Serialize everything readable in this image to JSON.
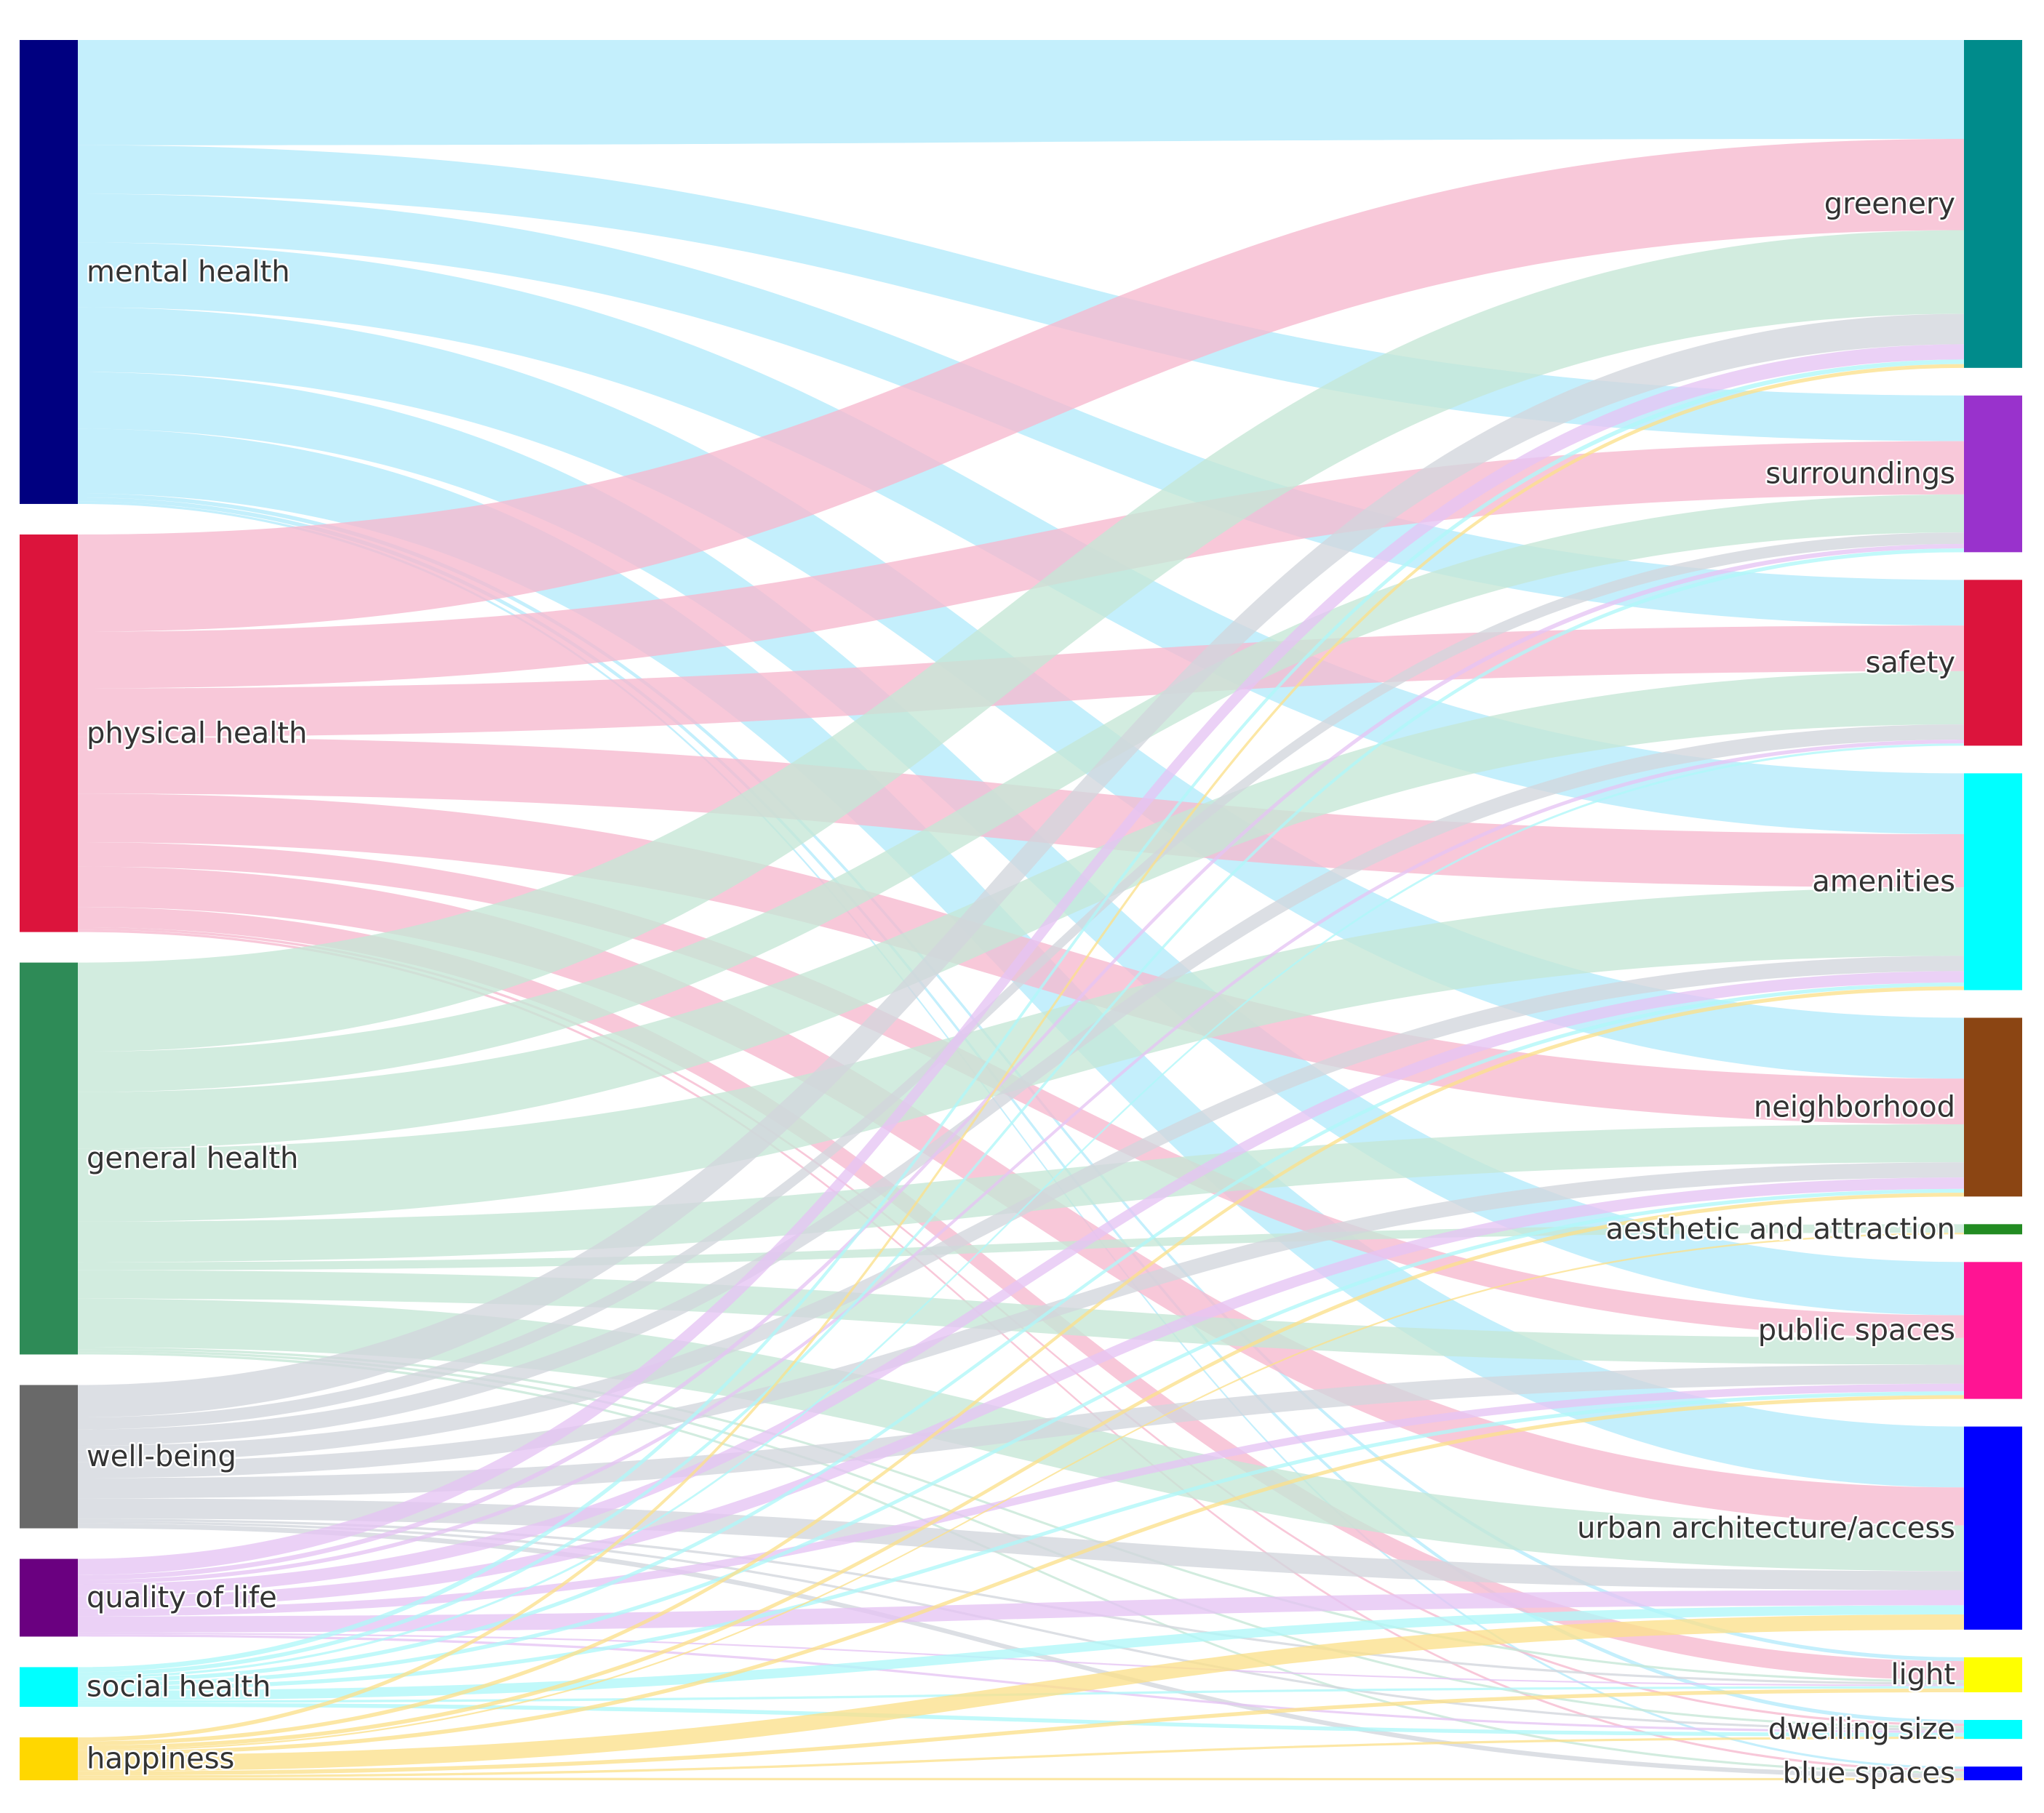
{
  "chart_data": {
    "type": "sankey",
    "title": "",
    "source_nodes": [
      {
        "id": "mental",
        "label": "mental health",
        "color": "#000080",
        "link_color": "#b3ebfb"
      },
      {
        "id": "physical",
        "label": "physical health",
        "color": "#dc143c",
        "link_color": "#f6b8ce"
      },
      {
        "id": "general",
        "label": "general health",
        "color": "#2e8b57",
        "link_color": "#c5e7d6"
      },
      {
        "id": "wellbeing",
        "label": "well-being",
        "color": "#696969",
        "link_color": "#d2d6dc"
      },
      {
        "id": "qol",
        "label": "quality of life",
        "color": "#6a0080",
        "link_color": "#e5c4f4"
      },
      {
        "id": "social",
        "label": "social health",
        "color": "#00ffff",
        "link_color": "#aff7f9"
      },
      {
        "id": "happiness",
        "label": "happiness",
        "color": "#ffd700",
        "link_color": "#fbe08c"
      }
    ],
    "target_nodes": [
      {
        "id": "greenery",
        "label": "greenery",
        "color": "#008b8b"
      },
      {
        "id": "surroundings",
        "label": "surroundings",
        "color": "#9932cc"
      },
      {
        "id": "safety",
        "label": "safety",
        "color": "#dc143c"
      },
      {
        "id": "amenities",
        "label": "amenities",
        "color": "#00ffff"
      },
      {
        "id": "neighborhood",
        "label": "neighborhood",
        "color": "#8b4513"
      },
      {
        "id": "aesthetic",
        "label": "aesthetic and attraction",
        "color": "#228b22"
      },
      {
        "id": "public",
        "label": "public spaces",
        "color": "#ff1493"
      },
      {
        "id": "urban",
        "label": "urban architecture/access",
        "color": "#0000ff"
      },
      {
        "id": "light",
        "label": "light",
        "color": "#ffff00"
      },
      {
        "id": "dwelling",
        "label": "dwelling size",
        "color": "#00ffff"
      },
      {
        "id": "blue",
        "label": "blue spaces",
        "color": "#0000ff"
      }
    ],
    "links": [
      {
        "source": "mental",
        "target": "greenery",
        "value": 13
      },
      {
        "source": "mental",
        "target": "surroundings",
        "value": 6
      },
      {
        "source": "mental",
        "target": "safety",
        "value": 6
      },
      {
        "source": "mental",
        "target": "amenities",
        "value": 8
      },
      {
        "source": "mental",
        "target": "neighborhood",
        "value": 8
      },
      {
        "source": "mental",
        "target": "public",
        "value": 7
      },
      {
        "source": "mental",
        "target": "urban",
        "value": 8
      },
      {
        "source": "mental",
        "target": "light",
        "value": 0.5
      },
      {
        "source": "mental",
        "target": "dwelling",
        "value": 0.5
      },
      {
        "source": "mental",
        "target": "blue",
        "value": 0.3
      },
      {
        "source": "physical",
        "target": "greenery",
        "value": 12
      },
      {
        "source": "physical",
        "target": "surroundings",
        "value": 7
      },
      {
        "source": "physical",
        "target": "safety",
        "value": 6
      },
      {
        "source": "physical",
        "target": "amenities",
        "value": 7
      },
      {
        "source": "physical",
        "target": "neighborhood",
        "value": 6
      },
      {
        "source": "physical",
        "target": "public",
        "value": 3
      },
      {
        "source": "physical",
        "target": "urban",
        "value": 5
      },
      {
        "source": "physical",
        "target": "light",
        "value": 2.5
      },
      {
        "source": "physical",
        "target": "dwelling",
        "value": 0.3
      },
      {
        "source": "physical",
        "target": "blue",
        "value": 0.3
      },
      {
        "source": "general",
        "target": "greenery",
        "value": 11
      },
      {
        "source": "general",
        "target": "surroundings",
        "value": 5
      },
      {
        "source": "general",
        "target": "safety",
        "value": 7
      },
      {
        "source": "general",
        "target": "amenities",
        "value": 9
      },
      {
        "source": "general",
        "target": "neighborhood",
        "value": 5
      },
      {
        "source": "general",
        "target": "aesthetic",
        "value": 1
      },
      {
        "source": "general",
        "target": "public",
        "value": 3.5
      },
      {
        "source": "general",
        "target": "urban",
        "value": 6
      },
      {
        "source": "general",
        "target": "light",
        "value": 0.3
      },
      {
        "source": "general",
        "target": "dwelling",
        "value": 0.3
      },
      {
        "source": "general",
        "target": "blue",
        "value": 0.3
      },
      {
        "source": "wellbeing",
        "target": "greenery",
        "value": 4
      },
      {
        "source": "wellbeing",
        "target": "surroundings",
        "value": 1.5
      },
      {
        "source": "wellbeing",
        "target": "safety",
        "value": 2
      },
      {
        "source": "wellbeing",
        "target": "amenities",
        "value": 2
      },
      {
        "source": "wellbeing",
        "target": "neighborhood",
        "value": 2
      },
      {
        "source": "wellbeing",
        "target": "public",
        "value": 2.5
      },
      {
        "source": "wellbeing",
        "target": "urban",
        "value": 2.5
      },
      {
        "source": "wellbeing",
        "target": "light",
        "value": 0.3
      },
      {
        "source": "wellbeing",
        "target": "dwelling",
        "value": 0.3
      },
      {
        "source": "wellbeing",
        "target": "blue",
        "value": 0.6
      },
      {
        "source": "qol",
        "target": "greenery",
        "value": 2
      },
      {
        "source": "qol",
        "target": "surroundings",
        "value": 0.6
      },
      {
        "source": "qol",
        "target": "safety",
        "value": 0.5
      },
      {
        "source": "qol",
        "target": "amenities",
        "value": 1.5
      },
      {
        "source": "qol",
        "target": "neighborhood",
        "value": 1.5
      },
      {
        "source": "qol",
        "target": "public",
        "value": 1
      },
      {
        "source": "qol",
        "target": "urban",
        "value": 2
      },
      {
        "source": "qol",
        "target": "light",
        "value": 0.2
      },
      {
        "source": "qol",
        "target": "dwelling",
        "value": 0.3
      },
      {
        "source": "social",
        "target": "greenery",
        "value": 0.6
      },
      {
        "source": "social",
        "target": "surroundings",
        "value": 0.5
      },
      {
        "source": "social",
        "target": "safety",
        "value": 0.3
      },
      {
        "source": "social",
        "target": "amenities",
        "value": 0.5
      },
      {
        "source": "social",
        "target": "neighborhood",
        "value": 0.5
      },
      {
        "source": "social",
        "target": "public",
        "value": 0.5
      },
      {
        "source": "social",
        "target": "urban",
        "value": 1.2
      },
      {
        "source": "social",
        "target": "light",
        "value": 0.3
      },
      {
        "source": "social",
        "target": "dwelling",
        "value": 0.5
      },
      {
        "source": "happiness",
        "target": "greenery",
        "value": 0.5
      },
      {
        "source": "happiness",
        "target": "amenities",
        "value": 0.5
      },
      {
        "source": "happiness",
        "target": "neighborhood",
        "value": 0.5
      },
      {
        "source": "happiness",
        "target": "aesthetic",
        "value": 0.2
      },
      {
        "source": "happiness",
        "target": "public",
        "value": 0.5
      },
      {
        "source": "happiness",
        "target": "urban",
        "value": 2
      },
      {
        "source": "happiness",
        "target": "light",
        "value": 0.5
      },
      {
        "source": "happiness",
        "target": "dwelling",
        "value": 0.3
      },
      {
        "source": "happiness",
        "target": "blue",
        "value": 0.3
      }
    ]
  }
}
